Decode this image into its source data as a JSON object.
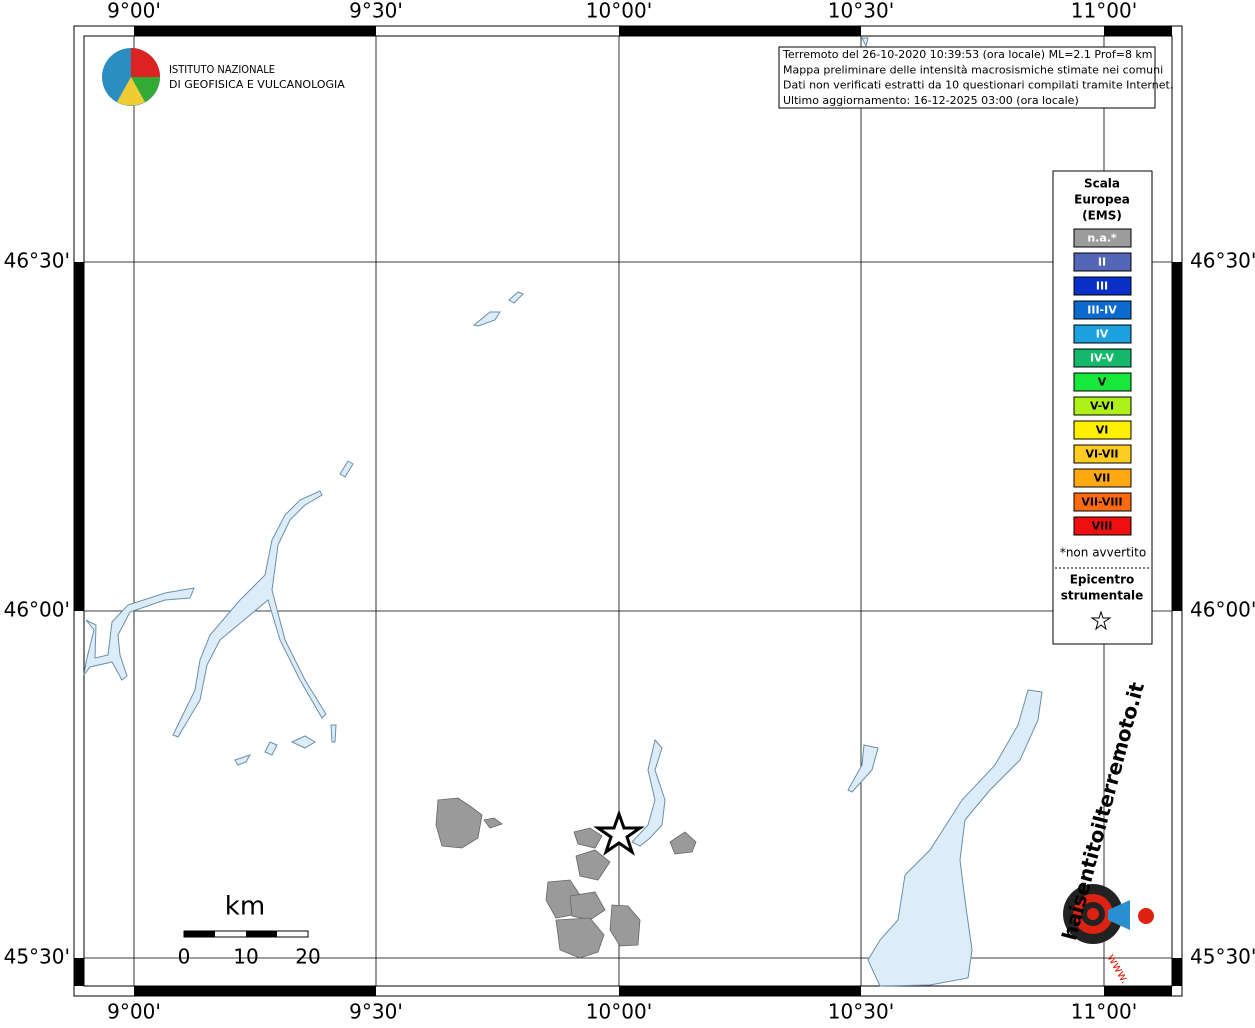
{
  "axis_labels": {
    "longitude": [
      "9°00'",
      "9°30'",
      "10°00'",
      "10°30'",
      "11°00'"
    ],
    "latitude": [
      "46°30'",
      "46°00'",
      "45°30'"
    ]
  },
  "institute": {
    "line1": "ISTITUTO NAZIONALE",
    "line2": "DI GEOFISICA E VULCANOLOGIA"
  },
  "info_box": [
    "Terremoto del 26-10-2020 10:39:53 (ora locale) ML=2.1 Prof=8 km",
    "Mappa preliminare delle intensità macrosismiche stimate nei comuni",
    "Dati non verificati estratti da 10 questionari compilati tramite Internet.",
    "Ultimo aggiornamento: 16-12-2025 03:00 (ora locale)"
  ],
  "legend": {
    "title": [
      "Scala",
      "Europea",
      "(EMS)"
    ],
    "items": [
      {
        "label": "n.a.*",
        "color": "#9c9c9c"
      },
      {
        "label": "II",
        "color": "#5566b8"
      },
      {
        "label": "III",
        "color": "#0a2fc8"
      },
      {
        "label": "III-IV",
        "color": "#0a6ad0"
      },
      {
        "label": "IV",
        "color": "#1ba0e0"
      },
      {
        "label": "IV-V",
        "color": "#13b86a"
      },
      {
        "label": "V",
        "color": "#18e83a"
      },
      {
        "label": "V-VI",
        "color": "#b0f01a"
      },
      {
        "label": "VI",
        "color": "#fff000"
      },
      {
        "label": "VI-VII",
        "color": "#ffcc22"
      },
      {
        "label": "VII",
        "color": "#ffa812"
      },
      {
        "label": "VII-VIII",
        "color": "#ff6a10"
      },
      {
        "label": "VIII",
        "color": "#ee1010"
      }
    ],
    "note": "*non avvertito",
    "epicenter": [
      "Epicentro",
      "strumentale"
    ]
  },
  "scale_bar": {
    "unit": "km",
    "labels": [
      "0",
      "10",
      "20"
    ]
  },
  "site_logo": {
    "name": "haisentitoilterremoto.it",
    "www": "www."
  }
}
